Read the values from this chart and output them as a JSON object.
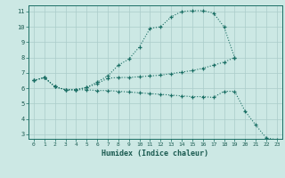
{
  "xlabel": "Humidex (Indice chaleur)",
  "bg_color": "#cce8e4",
  "grid_color": "#aaccca",
  "line_color": "#1a6e64",
  "xlim": [
    -0.5,
    23.5
  ],
  "ylim": [
    2.7,
    11.4
  ],
  "xticks": [
    0,
    1,
    2,
    3,
    4,
    5,
    6,
    7,
    8,
    9,
    10,
    11,
    12,
    13,
    14,
    15,
    16,
    17,
    18,
    19,
    20,
    21,
    22,
    23
  ],
  "yticks": [
    3,
    4,
    5,
    6,
    7,
    8,
    9,
    10,
    11
  ],
  "line1_x": [
    0,
    1,
    2,
    3,
    4,
    5,
    6,
    7,
    8,
    9,
    10,
    11,
    12,
    13,
    14,
    15,
    16,
    17,
    18,
    19
  ],
  "line1_y": [
    6.5,
    6.7,
    6.1,
    5.9,
    5.9,
    6.05,
    6.4,
    6.8,
    7.5,
    7.9,
    8.7,
    9.9,
    10.0,
    10.65,
    11.0,
    11.05,
    11.05,
    10.9,
    10.0,
    8.0
  ],
  "line2_x": [
    0,
    1,
    2,
    3,
    4,
    5,
    6,
    7,
    8,
    9,
    10,
    11,
    12,
    13,
    14,
    15,
    16,
    17,
    18,
    19
  ],
  "line2_y": [
    6.5,
    6.7,
    6.1,
    5.9,
    5.9,
    6.05,
    6.3,
    6.65,
    6.7,
    6.7,
    6.75,
    6.8,
    6.85,
    6.95,
    7.05,
    7.15,
    7.3,
    7.5,
    7.7,
    8.0
  ],
  "line3_x": [
    0,
    1,
    2,
    3,
    4,
    5,
    6,
    7,
    8,
    9,
    10,
    11,
    12,
    13,
    14,
    15,
    16,
    17,
    18,
    19,
    20,
    21,
    22,
    23
  ],
  "line3_y": [
    6.5,
    6.7,
    6.1,
    5.9,
    5.9,
    5.9,
    5.85,
    5.85,
    5.8,
    5.75,
    5.7,
    5.65,
    5.6,
    5.55,
    5.5,
    5.45,
    5.45,
    5.4,
    5.8,
    5.8,
    4.5,
    3.6,
    2.75,
    2.65
  ]
}
